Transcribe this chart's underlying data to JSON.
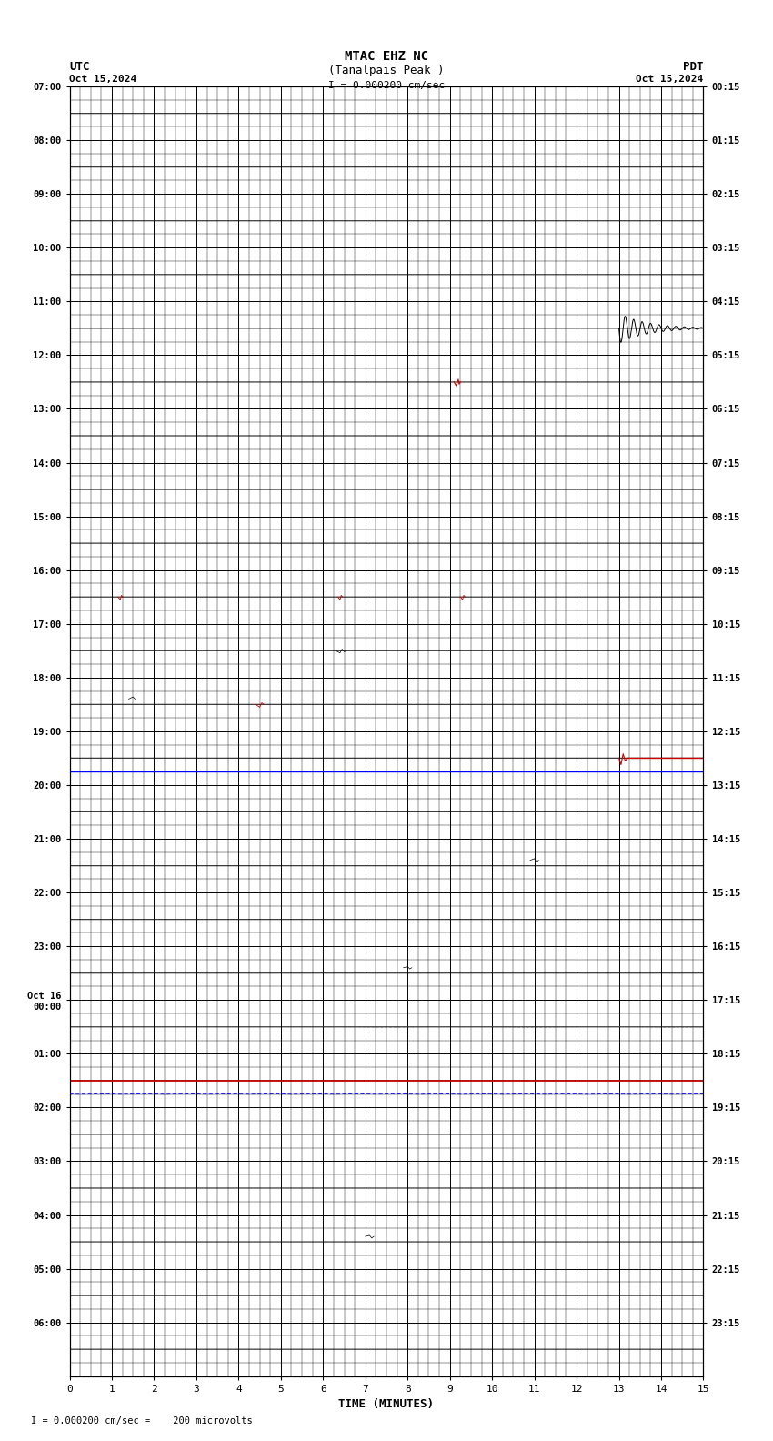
{
  "title_line1": "MTAC EHZ NC",
  "title_line2": "(Tanalpais Peak )",
  "scale_label": "I = 0.000200 cm/sec",
  "footer_label": "I = 0.000200 cm/sec =    200 microvolts",
  "utc_label": "UTC",
  "utc_date": "Oct 15,2024",
  "pdt_label": "PDT",
  "pdt_date": "Oct 15,2024",
  "xlabel": "TIME (MINUTES)",
  "left_yticks": [
    "07:00",
    "08:00",
    "09:00",
    "10:00",
    "11:00",
    "12:00",
    "13:00",
    "14:00",
    "15:00",
    "16:00",
    "17:00",
    "18:00",
    "19:00",
    "20:00",
    "21:00",
    "22:00",
    "23:00",
    "Oct 16\n00:00",
    "01:00",
    "02:00",
    "03:00",
    "04:00",
    "05:00",
    "06:00"
  ],
  "right_yticks": [
    "00:15",
    "01:15",
    "02:15",
    "03:15",
    "04:15",
    "05:15",
    "06:15",
    "07:15",
    "08:15",
    "09:15",
    "10:15",
    "11:15",
    "12:15",
    "13:15",
    "14:15",
    "15:15",
    "16:15",
    "17:15",
    "18:15",
    "19:15",
    "20:15",
    "21:15",
    "22:15",
    "23:15"
  ],
  "num_rows": 24,
  "xmin": 0,
  "xmax": 15,
  "bg_color": "#ffffff",
  "grid_major_color": "#000000",
  "grid_minor_color": "#000000",
  "trace_color": "#000000",
  "blue_line_color": "#0000ff",
  "red_line_color": "#cc0000",
  "minute_ticks": [
    0,
    1,
    2,
    3,
    4,
    5,
    6,
    7,
    8,
    9,
    10,
    11,
    12,
    13,
    14,
    15
  ],
  "subdivisions": 4,
  "row_subdivisions": 4
}
